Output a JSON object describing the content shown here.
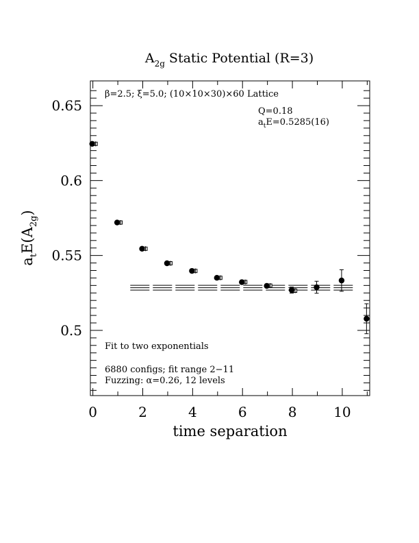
{
  "chart_data": {
    "type": "scatter",
    "title": {
      "main": "A",
      "sub": "2g",
      "rest": " Static Potential (R=3)"
    },
    "xlabel": "time separation",
    "ylabel": {
      "pre": "a",
      "t": "t",
      "mid": "E(A",
      "sub": "2g",
      "post": ")"
    },
    "xlim": [
      -0.1,
      11.1
    ],
    "ylim": [
      0.4565,
      0.6665
    ],
    "xticks": [
      "0",
      "2",
      "4",
      "6",
      "8",
      "10"
    ],
    "yticks": [
      "0.5",
      "0.55",
      "0.6",
      "0.65"
    ],
    "annotations": {
      "lattice": "β=2.5; ξ=5.0; (10×10×30)×60 Lattice",
      "q": "Q=0.18",
      "energy": {
        "pre": "a",
        "t": "t",
        "post": "E=0.5285(16)"
      },
      "fit": "Fit to two exponentials",
      "configs": "6880 configs; fit range 2−11",
      "fuzzing": "Fuzzing: α=0.26, 12 levels"
    },
    "series": [
      {
        "marker": "filled-circle",
        "points": [
          {
            "x": 0,
            "y": 0.6245,
            "err": 0
          },
          {
            "x": 1,
            "y": 0.572,
            "err": 0
          },
          {
            "x": 2,
            "y": 0.5545,
            "err": 0
          },
          {
            "x": 3,
            "y": 0.5448,
            "err": 0
          },
          {
            "x": 4,
            "y": 0.5397,
            "err": 0
          },
          {
            "x": 5,
            "y": 0.5351,
            "err": 0
          },
          {
            "x": 6,
            "y": 0.5322,
            "err": 0.001
          },
          {
            "x": 7,
            "y": 0.5297,
            "err": 0.0012
          },
          {
            "x": 8,
            "y": 0.5269,
            "err": 0.002
          },
          {
            "x": 9,
            "y": 0.5288,
            "err": 0.004
          },
          {
            "x": 10,
            "y": 0.5333,
            "err": 0.0072
          },
          {
            "x": 11,
            "y": 0.5078,
            "err": 0.01
          }
        ]
      },
      {
        "marker": "open-square",
        "points": [
          {
            "x": 0,
            "y": 0.6245
          },
          {
            "x": 1,
            "y": 0.572
          },
          {
            "x": 2,
            "y": 0.5545
          },
          {
            "x": 3,
            "y": 0.5448
          },
          {
            "x": 4,
            "y": 0.5397
          },
          {
            "x": 5,
            "y": 0.5351
          },
          {
            "x": 6,
            "y": 0.5323
          },
          {
            "x": 7,
            "y": 0.5299
          },
          {
            "x": 8,
            "y": 0.5265
          }
        ]
      }
    ],
    "fit": {
      "value": 0.5285,
      "err": 0.0016,
      "x_range": [
        1.5,
        10.5
      ]
    }
  }
}
